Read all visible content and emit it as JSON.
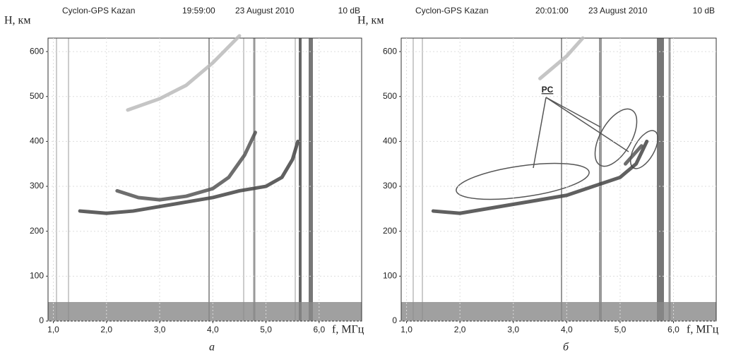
{
  "chart_data": [
    {
      "type": "line",
      "title": "Cyclon-GPS  Kazan",
      "time": "19:59:00",
      "date": "23 August 2010",
      "gain": "10 dB",
      "ylabel": "H, км",
      "xlabel": "f, МГц",
      "panel_label": "а",
      "xlim": [
        0.9,
        6.8
      ],
      "ylim": [
        0,
        630
      ],
      "xticks": [
        {
          "value": 1,
          "label": "1,0"
        },
        {
          "value": 2,
          "label": "2,0"
        },
        {
          "value": 3,
          "label": "3,0"
        },
        {
          "value": 4,
          "label": "4,0"
        },
        {
          "value": 5,
          "label": "5,0"
        },
        {
          "value": 6,
          "label": "6,0"
        }
      ],
      "yticks": [
        0,
        100,
        200,
        300,
        400,
        500,
        600
      ],
      "grid": true,
      "series": [
        {
          "color": "#444",
          "x": [
            1.5,
            2.0,
            2.5,
            3.0,
            3.5,
            4.0,
            4.5,
            5.0,
            5.3,
            5.5,
            5.6
          ],
          "values": [
            245,
            240,
            245,
            255,
            265,
            275,
            290,
            300,
            320,
            360,
            400
          ]
        },
        {
          "color": "#555",
          "x": [
            2.2,
            2.6,
            3.0,
            3.5,
            4.0,
            4.3,
            4.6,
            4.8
          ],
          "values": [
            290,
            275,
            270,
            278,
            295,
            320,
            370,
            420
          ]
        },
        {
          "color": "#bbb",
          "x": [
            2.4,
            3.0,
            3.5,
            4.0,
            4.5
          ],
          "values": [
            470,
            495,
            525,
            575,
            635
          ]
        }
      ]
    },
    {
      "type": "line",
      "title": "Cyclon-GPS  Kazan",
      "time": "20:01:00",
      "date": "23 August 2010",
      "gain": "10 dB",
      "ylabel": "H, км",
      "xlabel": "f, МГц",
      "panel_label": "б",
      "annotations": [
        "PC"
      ],
      "xlim": [
        0.9,
        6.8
      ],
      "ylim": [
        0,
        630
      ],
      "xticks": [
        {
          "value": 1,
          "label": "1,0"
        },
        {
          "value": 2,
          "label": "2,0"
        },
        {
          "value": 3,
          "label": "3,0"
        },
        {
          "value": 4,
          "label": "4,0"
        },
        {
          "value": 5,
          "label": "5,0"
        },
        {
          "value": 6,
          "label": "6,0"
        }
      ],
      "yticks": [
        0,
        100,
        200,
        300,
        400,
        500,
        600
      ],
      "grid": true,
      "series": [
        {
          "color": "#444",
          "x": [
            1.5,
            2.0,
            2.5,
            3.0,
            3.5,
            4.0,
            4.5,
            5.0,
            5.3,
            5.5
          ],
          "values": [
            245,
            240,
            250,
            260,
            270,
            280,
            300,
            320,
            350,
            400
          ]
        },
        {
          "color": "#555",
          "x": [
            5.1,
            5.25,
            5.4
          ],
          "values": [
            350,
            370,
            390
          ]
        },
        {
          "color": "#bbb",
          "x": [
            3.5,
            4.0,
            4.3
          ],
          "values": [
            540,
            590,
            630
          ]
        }
      ]
    }
  ]
}
